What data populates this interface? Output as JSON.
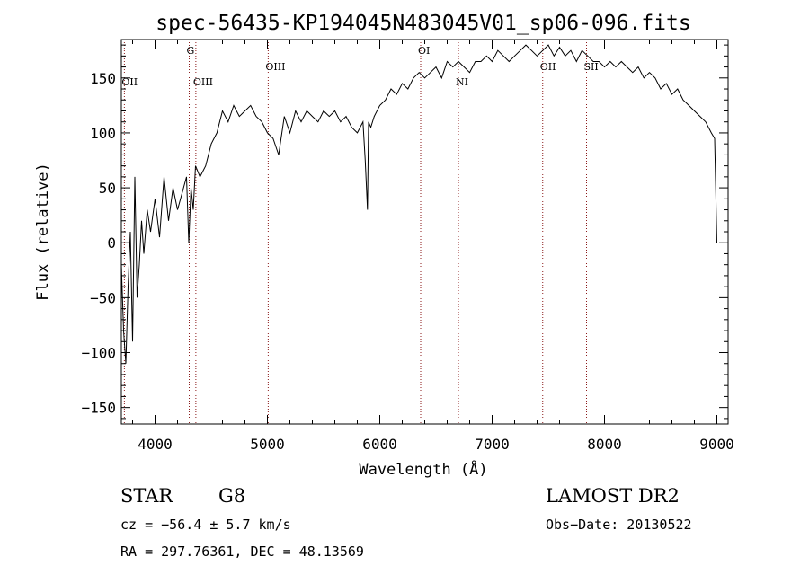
{
  "chart_data": {
    "type": "line",
    "title": "spec-56435-KP194045N483045V01_sp06-096.fits",
    "xlabel": "Wavelength (Å)",
    "ylabel": "Flux (relative)",
    "xlim": [
      3700,
      9100
    ],
    "ylim": [
      -165,
      185
    ],
    "xticks": [
      4000,
      5000,
      6000,
      7000,
      8000,
      9000
    ],
    "yticks": [
      -150,
      -100,
      -50,
      0,
      50,
      100,
      150
    ],
    "grid": false,
    "series": [
      {
        "x": [
          3700,
          3720,
          3740,
          3760,
          3780,
          3800,
          3820,
          3840,
          3860,
          3880,
          3900,
          3930,
          3960,
          4000,
          4040,
          4080,
          4120,
          4160,
          4200,
          4240,
          4280,
          4300,
          4320,
          4340,
          4360,
          4400,
          4450,
          4500,
          4550,
          4600,
          4650,
          4700,
          4750,
          4800,
          4850,
          4900,
          4950,
          5000,
          5050,
          5100,
          5150,
          5200,
          5250,
          5300,
          5350,
          5400,
          5450,
          5500,
          5550,
          5600,
          5650,
          5700,
          5750,
          5800,
          5850,
          5870,
          5890,
          5900,
          5920,
          5950,
          6000,
          6050,
          6100,
          6150,
          6200,
          6250,
          6300,
          6350,
          6400,
          6450,
          6500,
          6550,
          6600,
          6650,
          6700,
          6750,
          6800,
          6850,
          6900,
          6950,
          7000,
          7050,
          7100,
          7150,
          7200,
          7250,
          7300,
          7350,
          7400,
          7450,
          7500,
          7550,
          7600,
          7650,
          7700,
          7750,
          7800,
          7850,
          7900,
          7950,
          8000,
          8050,
          8100,
          8150,
          8200,
          8250,
          8300,
          8350,
          8400,
          8450,
          8500,
          8550,
          8600,
          8650,
          8700,
          8750,
          8800,
          8850,
          8900,
          8950,
          8980,
          9000
        ],
        "y": [
          -20,
          -80,
          -110,
          -40,
          10,
          -90,
          60,
          -50,
          -20,
          20,
          -10,
          30,
          10,
          40,
          5,
          60,
          20,
          50,
          30,
          45,
          60,
          0,
          50,
          30,
          70,
          60,
          70,
          90,
          100,
          120,
          110,
          125,
          115,
          120,
          125,
          115,
          110,
          100,
          95,
          80,
          115,
          100,
          120,
          110,
          120,
          115,
          110,
          120,
          115,
          120,
          110,
          115,
          105,
          100,
          110,
          75,
          30,
          110,
          105,
          115,
          125,
          130,
          140,
          135,
          145,
          140,
          150,
          155,
          150,
          155,
          160,
          150,
          165,
          160,
          165,
          160,
          155,
          165,
          165,
          170,
          165,
          175,
          170,
          165,
          170,
          175,
          180,
          175,
          170,
          175,
          180,
          170,
          178,
          170,
          175,
          165,
          175,
          170,
          165,
          165,
          160,
          165,
          160,
          165,
          160,
          155,
          160,
          150,
          155,
          150,
          140,
          145,
          135,
          140,
          130,
          125,
          120,
          115,
          110,
          100,
          95,
          0
        ]
      }
    ],
    "lines": [
      {
        "label": "OII",
        "x": 3727,
        "row": 2
      },
      {
        "label": "G",
        "x": 4304,
        "row": 0
      },
      {
        "label": "OIII",
        "x": 4363,
        "row": 2
      },
      {
        "label": "OIII",
        "x": 5007,
        "row": 1
      },
      {
        "label": "OI",
        "x": 6364,
        "row": 0
      },
      {
        "label": "NI",
        "x": 6700,
        "row": 2
      },
      {
        "label": "OII",
        "x": 7450,
        "row": 1
      },
      {
        "label": "SII",
        "x": 7840,
        "row": 1
      }
    ],
    "line_color": "#8b1a1a"
  },
  "info": {
    "object_class": "STAR",
    "subclass": "G8",
    "survey": "LAMOST DR2",
    "cz": "cz = −56.4 ± 5.7 km/s",
    "obs_date": "Obs−Date: 20130522",
    "coords": "RA = 297.76361, DEC =  48.13569"
  }
}
